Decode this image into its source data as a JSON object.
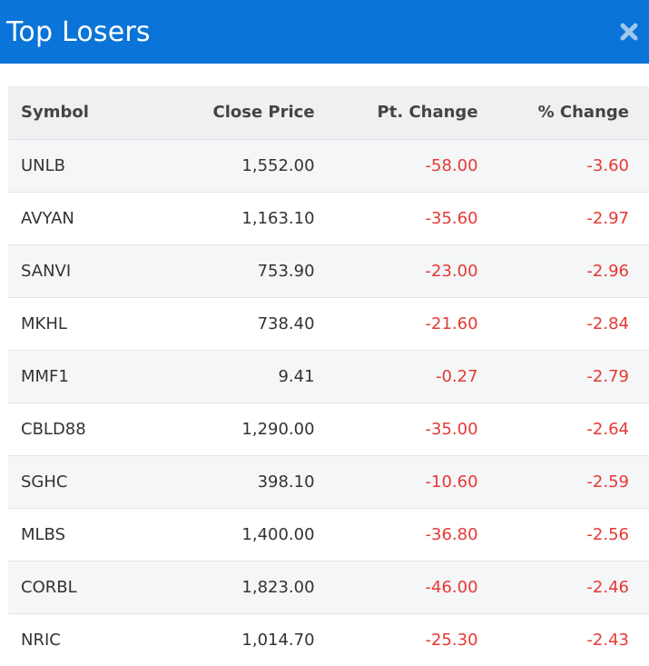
{
  "header": {
    "title": "Top Losers",
    "close_icon": "close-x-icon",
    "bg_color": "#0a74d8"
  },
  "table": {
    "columns": [
      "Symbol",
      "Close Price",
      "Pt. Change",
      "% Change"
    ],
    "rows": [
      {
        "symbol": "UNLB",
        "close": "1,552.00",
        "pt": "-58.00",
        "pct": "-3.60"
      },
      {
        "symbol": "AVYAN",
        "close": "1,163.10",
        "pt": "-35.60",
        "pct": "-2.97"
      },
      {
        "symbol": "SANVI",
        "close": "753.90",
        "pt": "-23.00",
        "pct": "-2.96"
      },
      {
        "symbol": "MKHL",
        "close": "738.40",
        "pt": "-21.60",
        "pct": "-2.84"
      },
      {
        "symbol": "MMF1",
        "close": "9.41",
        "pt": "-0.27",
        "pct": "-2.79"
      },
      {
        "symbol": "CBLD88",
        "close": "1,290.00",
        "pt": "-35.00",
        "pct": "-2.64"
      },
      {
        "symbol": "SGHC",
        "close": "398.10",
        "pt": "-10.60",
        "pct": "-2.59"
      },
      {
        "symbol": "MLBS",
        "close": "1,400.00",
        "pt": "-36.80",
        "pct": "-2.56"
      },
      {
        "symbol": "CORBL",
        "close": "1,823.00",
        "pt": "-46.00",
        "pct": "-2.46"
      },
      {
        "symbol": "NRIC",
        "close": "1,014.70",
        "pt": "-25.30",
        "pct": "-2.43"
      }
    ],
    "negative_color": "#e53935"
  }
}
